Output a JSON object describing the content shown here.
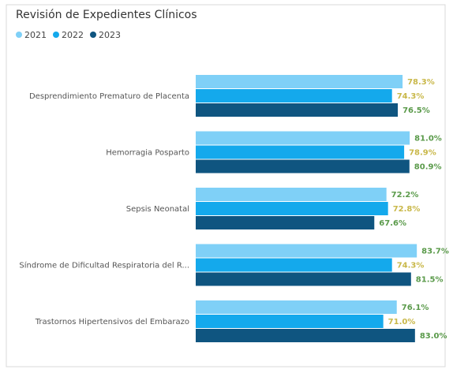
{
  "chart_data": {
    "type": "hbar",
    "title": "Revisión de Expedientes Clínicos",
    "categories": [
      "Desprendimiento Prematuro de Placenta",
      "Hemorragia Posparto",
      "Sepsis Neonatal",
      "Síndrome de Dificultad Respiratoria del R...",
      "Trastornos Hipertensivos del Embarazo"
    ],
    "series": [
      {
        "name": "2021",
        "color": "#7fd0f7",
        "values": [
          78.3,
          81.0,
          72.2,
          83.7,
          76.1
        ],
        "value_labels": [
          "78.3%",
          "81.0%",
          "72.2%",
          "83.7%",
          "76.1%"
        ],
        "value_label_colors": [
          "#c9b84a",
          "#5a9a4a",
          "#5a9a4a",
          "#5a9a4a",
          "#5a9a4a"
        ]
      },
      {
        "name": "2022",
        "color": "#14a9ec",
        "values": [
          74.3,
          78.9,
          72.8,
          74.3,
          71.0
        ],
        "value_labels": [
          "74.3%",
          "78.9%",
          "72.8%",
          "74.3%",
          "71.0%"
        ],
        "value_label_colors": [
          "#c9b84a",
          "#c9b84a",
          "#c9b84a",
          "#c9b84a",
          "#c9b84a"
        ]
      },
      {
        "name": "2023",
        "color": "#0f5580",
        "values": [
          76.5,
          80.9,
          67.6,
          81.5,
          83.0
        ],
        "value_labels": [
          "76.5%",
          "80.9%",
          "67.6%",
          "81.5%",
          "83.0%"
        ],
        "value_label_colors": [
          "#5a9a4a",
          "#5a9a4a",
          "#5a9a4a",
          "#5a9a4a",
          "#5a9a4a"
        ]
      }
    ],
    "xlim": [
      0,
      95
    ]
  }
}
